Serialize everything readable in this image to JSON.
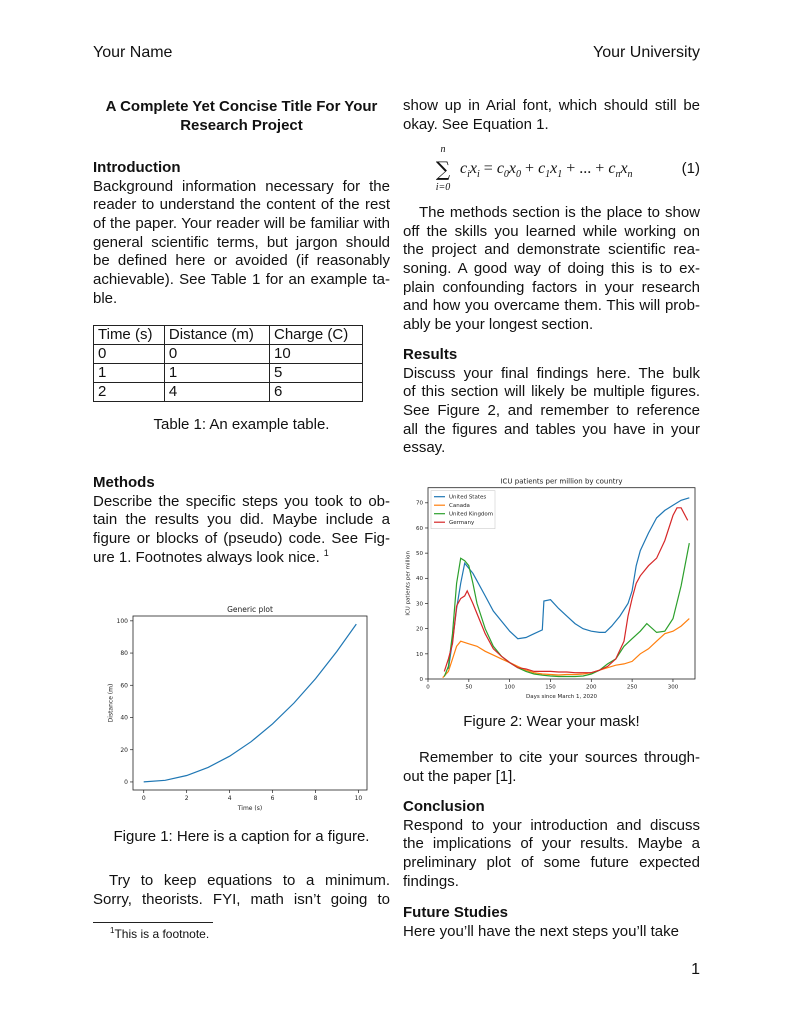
{
  "header": {
    "left": "Your Name",
    "right": "Your University"
  },
  "title": [
    "A Complete Yet Concise Title For Your",
    "Research Project"
  ],
  "intro": {
    "heading": "Introduction",
    "lines": [
      "Background information necessary for the",
      "reader to understand the content of the rest",
      "of the paper. Your reader will be familiar with",
      "general scientific terms, but jargon should",
      "be defined here or avoided (if reasonably",
      "achievable). See Table 1 for an example ta-",
      "ble."
    ]
  },
  "table": {
    "headers": [
      "Time (s)",
      "Distance (m)",
      "Charge (C)"
    ],
    "rows": [
      [
        "0",
        "0",
        "10"
      ],
      [
        "1",
        "1",
        "5"
      ],
      [
        "2",
        "4",
        "6"
      ]
    ],
    "caption": "Table 1: An example table."
  },
  "methods": {
    "heading": "Methods",
    "lines": [
      "Describe the specific steps you took to ob-",
      "tain the results you did. Maybe include a",
      "figure or blocks of (pseudo) code. See Fig-",
      "ure 1. Footnotes always look nice."
    ],
    "footnote_mark": "1"
  },
  "figure1_caption": "Figure 1: Here is a caption for a figure.",
  "left_bottom": {
    "lines": [
      "Try to keep equations to a minimum.",
      "Sorry, theorists. FYI, math isn’t going to"
    ]
  },
  "footnote": {
    "mark": "1",
    "text": "This is a footnote."
  },
  "right_top": {
    "lines": [
      "show up in Arial font, which should still be",
      "okay. See Equation 1."
    ]
  },
  "equation": {
    "sum_top": "n",
    "sum_bottom": "i=0",
    "number": "(1)"
  },
  "methods2": {
    "lines": [
      "The methods section is the place to show",
      "off the skills you learned while working on",
      "the project and demonstrate scientific rea-",
      "soning. A good way of doing this is to ex-",
      "plain confounding factors in your research",
      "and how you overcame them. This will prob-",
      "ably be your longest section."
    ]
  },
  "results": {
    "heading": "Results",
    "lines": [
      "Discuss your final findings here. The bulk",
      "of this section will likely be multiple figures.",
      "See Figure 2, and remember to reference",
      "all the figures and tables you have in your",
      "essay."
    ]
  },
  "figure2_caption": "Figure 2: Wear your mask!",
  "cite": {
    "lines": [
      "Remember to cite your sources through-",
      "out the paper [1]."
    ]
  },
  "conclusion": {
    "heading": "Conclusion",
    "lines": [
      "Respond to your introduction and discuss",
      "the implications of your results. Maybe a",
      "preliminary plot of some future expected",
      "findings."
    ]
  },
  "future": {
    "heading": "Future Studies",
    "lines": [
      "Here you’ll have the next steps you’ll take"
    ]
  },
  "page_number": "1",
  "chart_data": [
    {
      "type": "line",
      "title": "Generic plot",
      "xlabel": "Time (s)",
      "ylabel": "Distance (m)",
      "xlim": [
        -0.5,
        10.4
      ],
      "ylim": [
        -5,
        103
      ],
      "xticks": [
        0,
        2,
        4,
        6,
        8,
        10
      ],
      "yticks": [
        0,
        20,
        40,
        60,
        80,
        100
      ],
      "series": [
        {
          "color": "#1f77b4",
          "x": [
            0,
            1,
            2,
            3,
            4,
            5,
            6,
            7,
            8,
            9,
            9.9
          ],
          "y": [
            0,
            1,
            4,
            9,
            16,
            25,
            36,
            49,
            64,
            81,
            98
          ]
        }
      ]
    },
    {
      "type": "line",
      "title": "ICU patients per million by country",
      "xlabel": "Days since March 1, 2020",
      "ylabel": "ICU patients per million",
      "xlim": [
        0,
        327
      ],
      "ylim": [
        0,
        76
      ],
      "xticks": [
        0,
        50,
        100,
        150,
        200,
        250,
        300
      ],
      "yticks": [
        0,
        10,
        20,
        30,
        40,
        50,
        60,
        70
      ],
      "legend": "top-left",
      "series": [
        {
          "name": "United States",
          "color": "#1f77b4",
          "x": [
            25,
            30,
            35,
            40,
            45,
            50,
            55,
            60,
            70,
            80,
            90,
            100,
            110,
            120,
            130,
            140,
            142,
            150,
            160,
            170,
            180,
            190,
            200,
            210,
            217,
            225,
            235,
            245,
            250,
            255,
            260,
            270,
            280,
            290,
            300,
            310,
            320
          ],
          "y": [
            4,
            15,
            28,
            38,
            46,
            44,
            42,
            39,
            33,
            27,
            23,
            19,
            16,
            16.5,
            18,
            19.5,
            31,
            31.5,
            28,
            25,
            22,
            20,
            19,
            18.5,
            18.5,
            21,
            25,
            30,
            35,
            45,
            51,
            58,
            64,
            67,
            69,
            71,
            72
          ]
        },
        {
          "name": "Canada",
          "color": "#ff7f0e",
          "x": [
            18,
            25,
            30,
            35,
            40,
            50,
            60,
            70,
            80,
            90,
            100,
            110,
            120,
            130,
            140,
            150,
            160,
            170,
            180,
            190,
            200,
            210,
            220,
            230,
            240,
            250,
            260,
            270,
            280,
            290,
            300,
            310,
            320
          ],
          "y": [
            0.5,
            3,
            8,
            13,
            15,
            14,
            13,
            11,
            9.5,
            8,
            6.5,
            5,
            3.5,
            2.5,
            2,
            1.8,
            1.6,
            1.8,
            1.8,
            2,
            2.5,
            3.5,
            4.5,
            5.5,
            6,
            7,
            10,
            12,
            15,
            18,
            19,
            21,
            24
          ]
        },
        {
          "name": "United Kingdom",
          "color": "#2ca02c",
          "x": [
            20,
            25,
            30,
            35,
            40,
            45,
            50,
            55,
            60,
            70,
            80,
            90,
            100,
            110,
            120,
            130,
            140,
            150,
            160,
            170,
            180,
            190,
            200,
            210,
            220,
            230,
            240,
            250,
            260,
            268,
            280,
            290,
            300,
            310,
            320
          ],
          "y": [
            1,
            5,
            18,
            38,
            48,
            47,
            45,
            38,
            30,
            20,
            13,
            9,
            6.5,
            4.5,
            3,
            2,
            1.5,
            1.2,
            1,
            1,
            1,
            1.2,
            2,
            3.5,
            6,
            8,
            13,
            16,
            19,
            22,
            18.5,
            19,
            24,
            37,
            54
          ]
        },
        {
          "name": "Germany",
          "color": "#d62728",
          "x": [
            20,
            25,
            30,
            35,
            40,
            45,
            48,
            55,
            60,
            70,
            80,
            90,
            100,
            110,
            120,
            130,
            140,
            150,
            160,
            170,
            180,
            190,
            200,
            210,
            220,
            230,
            240,
            245,
            250,
            255,
            260,
            270,
            280,
            290,
            300,
            305,
            310,
            318
          ],
          "y": [
            3,
            8,
            14,
            29,
            32,
            33,
            35,
            30,
            26,
            18,
            12,
            9,
            6.5,
            4.5,
            4,
            3,
            3,
            3,
            2.8,
            2.8,
            2.5,
            2.5,
            2.5,
            3.5,
            5,
            8,
            15,
            25,
            32,
            38,
            41,
            45,
            48,
            55,
            65,
            68,
            68,
            63
          ]
        }
      ]
    }
  ]
}
